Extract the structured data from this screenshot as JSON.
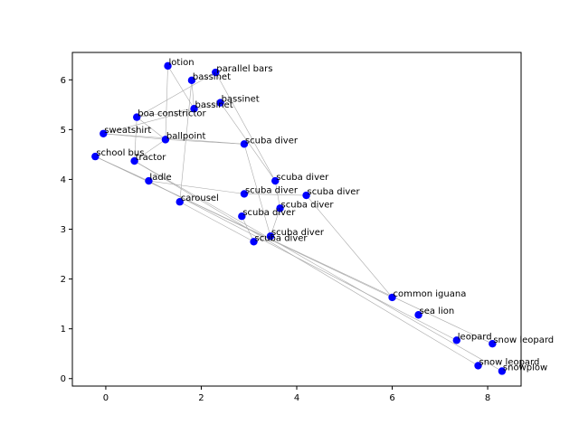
{
  "chart_data": {
    "type": "scatter",
    "title": "",
    "xlabel": "",
    "ylabel": "",
    "xlim": [
      -0.7,
      8.7
    ],
    "ylim": [
      -0.15,
      6.55
    ],
    "xticks": [
      0,
      2,
      4,
      6,
      8
    ],
    "yticks": [
      0,
      1,
      2,
      3,
      4,
      5,
      6
    ],
    "point_color": "#0000ff",
    "edge_color": "#aaaaaa",
    "grid": false,
    "points": [
      {
        "label": "lotion",
        "x": 1.3,
        "y": 6.28
      },
      {
        "label": "parallel bars",
        "x": 2.3,
        "y": 6.15
      },
      {
        "label": "bassinet",
        "x": 1.8,
        "y": 5.99
      },
      {
        "label": "bassinet",
        "x": 2.4,
        "y": 5.54
      },
      {
        "label": "bassinet",
        "x": 1.85,
        "y": 5.42
      },
      {
        "label": "boa constrictor",
        "x": 0.65,
        "y": 5.25
      },
      {
        "label": "sweatshirt",
        "x": -0.05,
        "y": 4.92
      },
      {
        "label": "ballpoint",
        "x": 1.25,
        "y": 4.8
      },
      {
        "label": "scuba diver",
        "x": 2.9,
        "y": 4.71
      },
      {
        "label": "school bus",
        "x": -0.22,
        "y": 4.46
      },
      {
        "label": "tractor",
        "x": 0.6,
        "y": 4.37
      },
      {
        "label": "ladle",
        "x": 0.9,
        "y": 3.97
      },
      {
        "label": "scuba diver",
        "x": 3.55,
        "y": 3.97
      },
      {
        "label": "scuba diver",
        "x": 2.9,
        "y": 3.71
      },
      {
        "label": "scuba diver",
        "x": 4.2,
        "y": 3.68
      },
      {
        "label": "carousel",
        "x": 1.55,
        "y": 3.55
      },
      {
        "label": "scuba diver",
        "x": 3.65,
        "y": 3.42
      },
      {
        "label": "scuba diver",
        "x": 2.85,
        "y": 3.26
      },
      {
        "label": "scuba diver",
        "x": 3.45,
        "y": 2.86
      },
      {
        "label": "scuba diver",
        "x": 3.1,
        "y": 2.75
      },
      {
        "label": "common iguana",
        "x": 6.0,
        "y": 1.63
      },
      {
        "label": "sea lion",
        "x": 6.55,
        "y": 1.28
      },
      {
        "label": "leopard",
        "x": 7.35,
        "y": 0.77
      },
      {
        "label": "snow leopard",
        "x": 8.1,
        "y": 0.7
      },
      {
        "label": "snow leopard",
        "x": 7.8,
        "y": 0.26
      },
      {
        "label": "snowplow",
        "x": 8.3,
        "y": 0.15
      }
    ],
    "edges": [
      [
        0,
        7
      ],
      [
        0,
        4
      ],
      [
        2,
        4
      ],
      [
        2,
        15
      ],
      [
        1,
        5
      ],
      [
        1,
        12
      ],
      [
        3,
        6
      ],
      [
        3,
        12
      ],
      [
        4,
        5
      ],
      [
        5,
        7
      ],
      [
        5,
        10
      ],
      [
        6,
        7
      ],
      [
        7,
        8
      ],
      [
        7,
        10
      ],
      [
        8,
        18
      ],
      [
        9,
        11
      ],
      [
        9,
        20
      ],
      [
        9,
        23
      ],
      [
        10,
        24
      ],
      [
        11,
        13
      ],
      [
        11,
        22
      ],
      [
        13,
        14
      ],
      [
        12,
        16
      ],
      [
        14,
        20
      ],
      [
        15,
        19
      ],
      [
        16,
        18
      ],
      [
        17,
        19
      ],
      [
        6,
        8
      ],
      [
        10,
        25
      ]
    ]
  }
}
